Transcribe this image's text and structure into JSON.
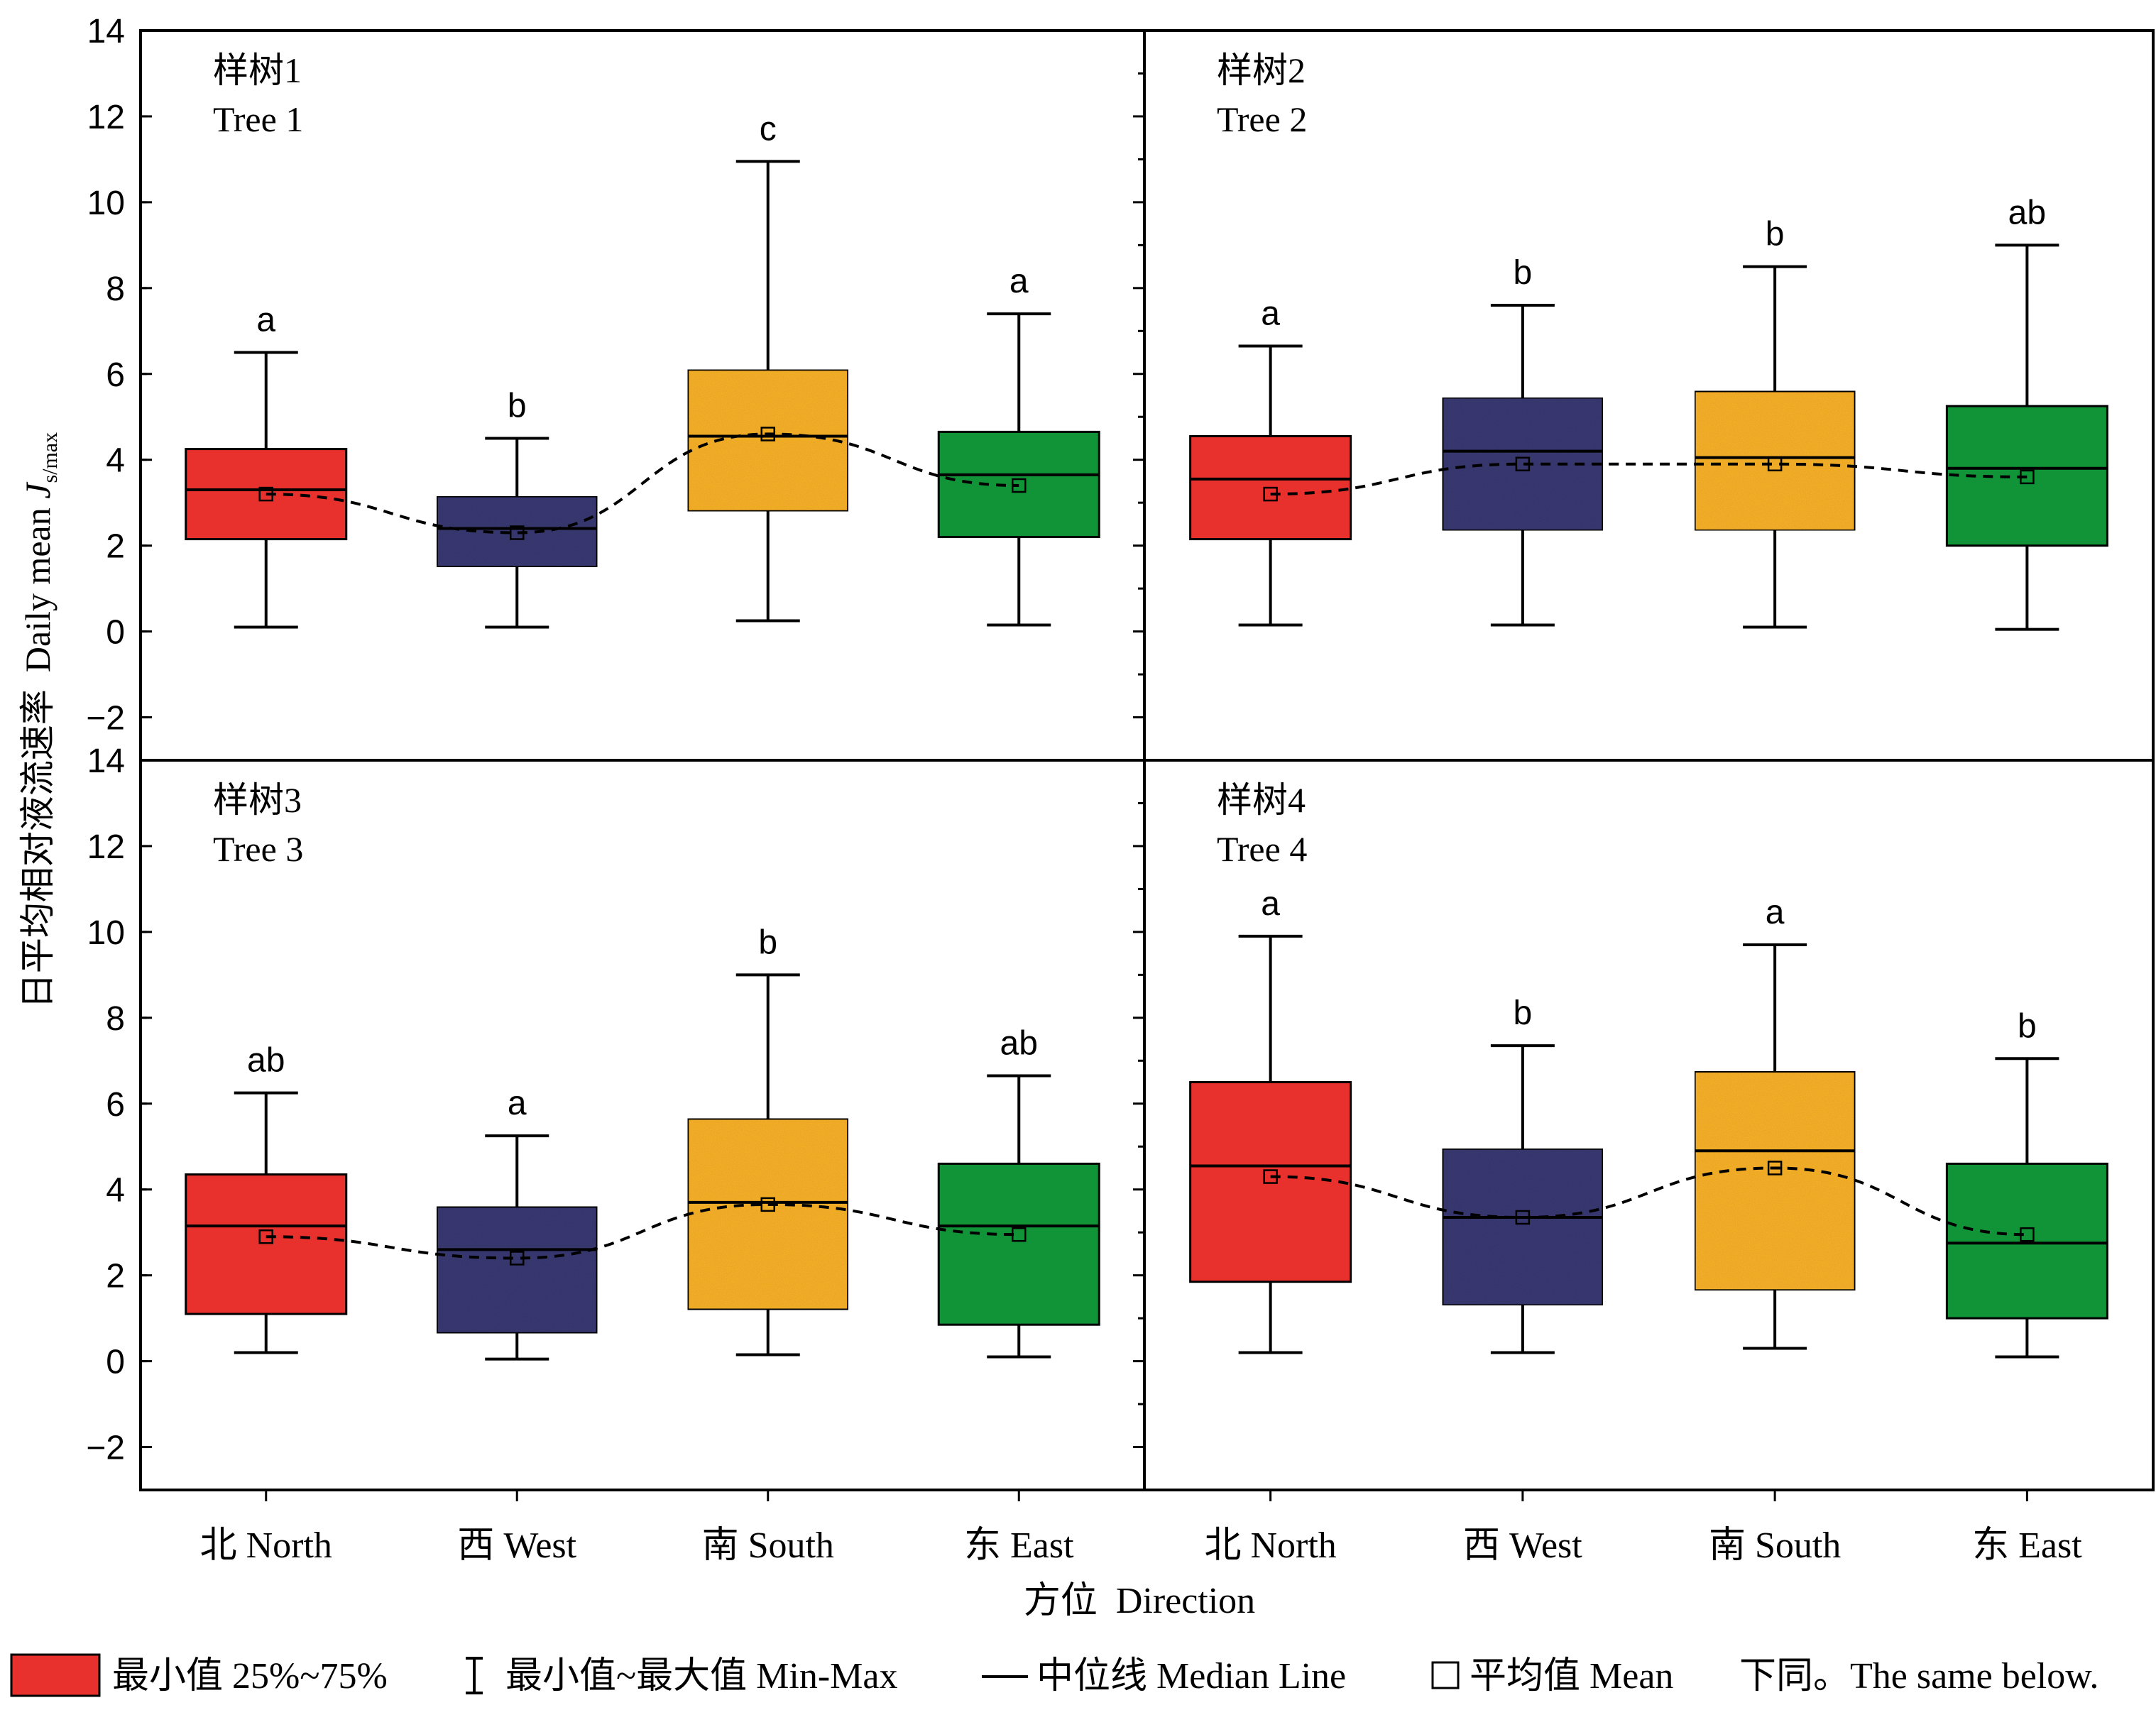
{
  "chart_data": {
    "type": "box",
    "y_axis_label_zh": "日平均相对液流速率",
    "y_axis_label_en_main": "Daily mean ",
    "y_axis_label_en_italic": "J",
    "y_axis_label_en_sub": "s/max",
    "x_axis_label": "方位  Direction",
    "ylim": [
      -3,
      14
    ],
    "yticks": [
      -2,
      0,
      2,
      4,
      6,
      8,
      10,
      12,
      14
    ],
    "ytick_labels": [
      "−2",
      "0",
      "2",
      "4",
      "6",
      "8",
      "10",
      "12",
      "14"
    ],
    "categories": [
      "北  North",
      "西  West",
      "南  South",
      "东  East"
    ],
    "colors": [
      "#e8302d",
      "#3b3a73",
      "#f9b22b",
      "#119438"
    ],
    "panels": [
      {
        "title_zh": "样树1",
        "title_en": "Tree 1",
        "boxes": [
          {
            "min": 0.1,
            "q1": 2.15,
            "median": 3.3,
            "q3": 4.25,
            "max": 6.5,
            "mean": 3.2,
            "letter": "a"
          },
          {
            "min": 0.1,
            "q1": 1.5,
            "median": 2.4,
            "q3": 3.15,
            "max": 4.5,
            "mean": 2.3,
            "letter": "b"
          },
          {
            "min": 0.25,
            "q1": 2.8,
            "median": 4.55,
            "q3": 6.1,
            "max": 10.95,
            "mean": 4.6,
            "letter": "c"
          },
          {
            "min": 0.15,
            "q1": 2.2,
            "median": 3.65,
            "q3": 4.65,
            "max": 7.4,
            "mean": 3.4,
            "letter": "a"
          }
        ]
      },
      {
        "title_zh": "样树2",
        "title_en": "Tree 2",
        "boxes": [
          {
            "min": 0.15,
            "q1": 2.15,
            "median": 3.55,
            "q3": 4.55,
            "max": 6.65,
            "mean": 3.2,
            "letter": "a"
          },
          {
            "min": 0.15,
            "q1": 2.35,
            "median": 4.2,
            "q3": 5.45,
            "max": 7.6,
            "mean": 3.9,
            "letter": "b"
          },
          {
            "min": 0.1,
            "q1": 2.35,
            "median": 4.05,
            "q3": 5.6,
            "max": 8.5,
            "mean": 3.9,
            "letter": "b"
          },
          {
            "min": 0.05,
            "q1": 2.0,
            "median": 3.8,
            "q3": 5.25,
            "max": 9.0,
            "mean": 3.6,
            "letter": "ab"
          }
        ]
      },
      {
        "title_zh": "样树3",
        "title_en": "Tree 3",
        "boxes": [
          {
            "min": 0.2,
            "q1": 1.1,
            "median": 3.15,
            "q3": 4.35,
            "max": 6.25,
            "mean": 2.9,
            "letter": "ab"
          },
          {
            "min": 0.05,
            "q1": 0.65,
            "median": 2.6,
            "q3": 3.6,
            "max": 5.25,
            "mean": 2.4,
            "letter": "a"
          },
          {
            "min": 0.15,
            "q1": 1.2,
            "median": 3.7,
            "q3": 5.65,
            "max": 9.0,
            "mean": 3.65,
            "letter": "b"
          },
          {
            "min": 0.1,
            "q1": 0.85,
            "median": 3.15,
            "q3": 4.6,
            "max": 6.65,
            "mean": 2.95,
            "letter": "ab"
          }
        ]
      },
      {
        "title_zh": "样树4",
        "title_en": "Tree 4",
        "boxes": [
          {
            "min": 0.2,
            "q1": 1.85,
            "median": 4.55,
            "q3": 6.5,
            "max": 9.9,
            "mean": 4.3,
            "letter": "a"
          },
          {
            "min": 0.2,
            "q1": 1.3,
            "median": 3.35,
            "q3": 4.95,
            "max": 7.35,
            "mean": 3.35,
            "letter": "b"
          },
          {
            "min": 0.3,
            "q1": 1.65,
            "median": 4.9,
            "q3": 6.75,
            "max": 9.7,
            "mean": 4.5,
            "letter": "a"
          },
          {
            "min": 0.1,
            "q1": 1.0,
            "median": 2.75,
            "q3": 4.6,
            "max": 7.05,
            "mean": 2.95,
            "letter": "b"
          }
        ]
      }
    ]
  },
  "legend": {
    "box_label": "最小值 25%~75%",
    "whisker_label": "最小值~最大值 Min-Max",
    "median_label": "中位线 Median Line",
    "mean_label": "平均值 Mean",
    "note": "下同。The same below."
  }
}
